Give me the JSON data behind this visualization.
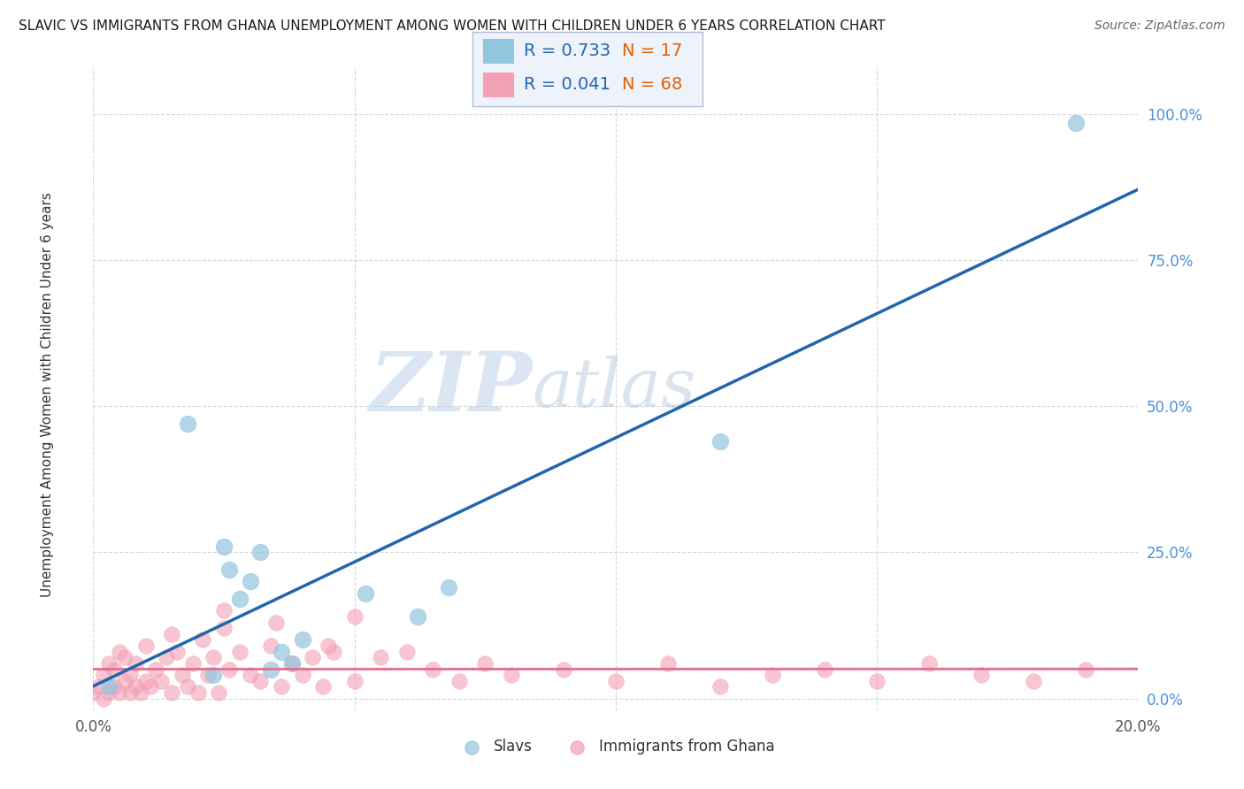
{
  "title": "SLAVIC VS IMMIGRANTS FROM GHANA UNEMPLOYMENT AMONG WOMEN WITH CHILDREN UNDER 6 YEARS CORRELATION CHART",
  "source": "Source: ZipAtlas.com",
  "ylabel": "Unemployment Among Women with Children Under 6 years",
  "xlim": [
    0.0,
    0.2
  ],
  "ylim": [
    -0.02,
    1.08
  ],
  "yticks": [
    0.0,
    0.25,
    0.5,
    0.75,
    1.0
  ],
  "ytick_labels": [
    "0.0%",
    "25.0%",
    "50.0%",
    "75.0%",
    "100.0%"
  ],
  "xticks": [
    0.0,
    0.05,
    0.1,
    0.15,
    0.2
  ],
  "xtick_labels": [
    "0.0%",
    "",
    "",
    "",
    "20.0%"
  ],
  "background_color": "#ffffff",
  "grid_color": "#d8d8d8",
  "slavs_color": "#92c5de",
  "ghana_color": "#f4a0b5",
  "slavs_line_color": "#2166ac",
  "ghana_line_color": "#e07090",
  "slavs_R": 0.733,
  "slavs_N": 17,
  "ghana_R": 0.041,
  "ghana_N": 68,
  "watermark_zip": "ZIP",
  "watermark_atlas": "atlas",
  "slavs_x": [
    0.003,
    0.018,
    0.023,
    0.025,
    0.026,
    0.028,
    0.03,
    0.032,
    0.034,
    0.036,
    0.038,
    0.04,
    0.052,
    0.062,
    0.068,
    0.12,
    0.188
  ],
  "slavs_y": [
    0.02,
    0.47,
    0.04,
    0.26,
    0.22,
    0.17,
    0.2,
    0.25,
    0.05,
    0.08,
    0.06,
    0.1,
    0.18,
    0.14,
    0.19,
    0.44,
    0.985
  ],
  "ghana_x": [
    0.0,
    0.001,
    0.002,
    0.002,
    0.003,
    0.003,
    0.004,
    0.004,
    0.005,
    0.005,
    0.006,
    0.006,
    0.007,
    0.007,
    0.008,
    0.008,
    0.009,
    0.01,
    0.01,
    0.011,
    0.012,
    0.013,
    0.014,
    0.015,
    0.016,
    0.017,
    0.018,
    0.019,
    0.02,
    0.021,
    0.022,
    0.023,
    0.024,
    0.025,
    0.026,
    0.028,
    0.03,
    0.032,
    0.034,
    0.036,
    0.038,
    0.04,
    0.042,
    0.044,
    0.046,
    0.05,
    0.055,
    0.06,
    0.065,
    0.07,
    0.08,
    0.09,
    0.1,
    0.11,
    0.12,
    0.13,
    0.14,
    0.15,
    0.16,
    0.17,
    0.18,
    0.19,
    0.05,
    0.025,
    0.035,
    0.015,
    0.045,
    0.075
  ],
  "ghana_y": [
    0.01,
    0.02,
    0.0,
    0.04,
    0.01,
    0.06,
    0.02,
    0.05,
    0.01,
    0.08,
    0.03,
    0.07,
    0.01,
    0.04,
    0.02,
    0.06,
    0.01,
    0.03,
    0.09,
    0.02,
    0.05,
    0.03,
    0.07,
    0.01,
    0.08,
    0.04,
    0.02,
    0.06,
    0.01,
    0.1,
    0.04,
    0.07,
    0.01,
    0.12,
    0.05,
    0.08,
    0.04,
    0.03,
    0.09,
    0.02,
    0.06,
    0.04,
    0.07,
    0.02,
    0.08,
    0.03,
    0.07,
    0.08,
    0.05,
    0.03,
    0.04,
    0.05,
    0.03,
    0.06,
    0.02,
    0.04,
    0.05,
    0.03,
    0.06,
    0.04,
    0.03,
    0.05,
    0.14,
    0.15,
    0.13,
    0.11,
    0.09,
    0.06
  ],
  "legend_box_color": "#eef2fb",
  "legend_border_color": "#b0bcd8",
  "legend_text_color": "#2166ac",
  "legend_n_color": "#e06000"
}
